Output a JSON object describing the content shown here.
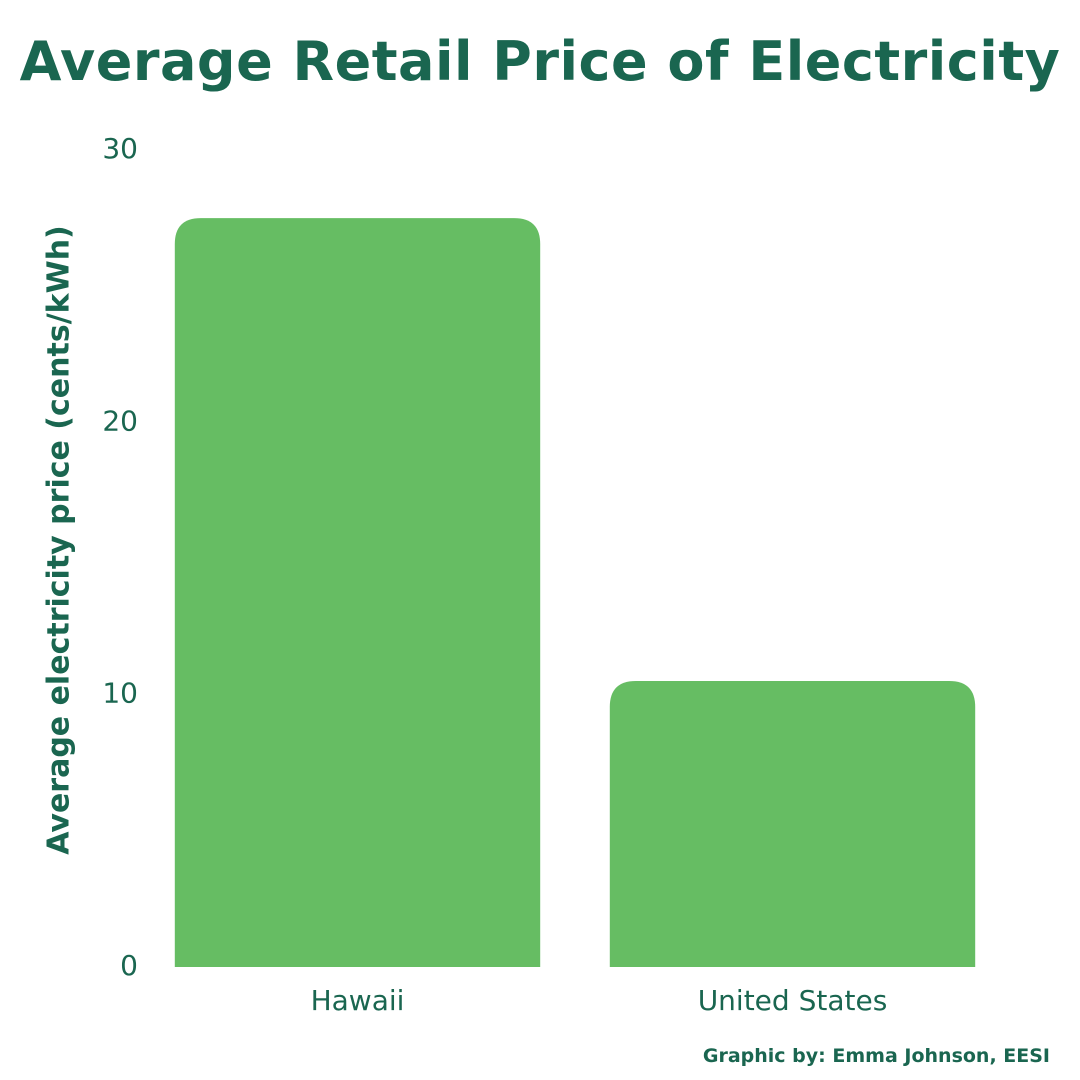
{
  "chart_data": {
    "type": "bar",
    "title": "Average Retail Price of Electricity",
    "ylabel": "Average electricity price (cents/kWh)",
    "xlabel": "",
    "categories": [
      "Hawaii",
      "United States"
    ],
    "values": [
      27.5,
      10.5
    ],
    "ylim": [
      0,
      30
    ],
    "yticks": [
      0,
      10,
      20,
      30
    ],
    "grid": false,
    "legend": "none",
    "bar_color": "#66bd63",
    "text_color": "#1a6650"
  },
  "credit": "Graphic by: Emma Johnson, EESI"
}
